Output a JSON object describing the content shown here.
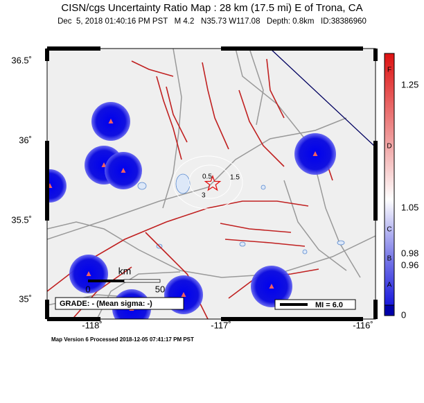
{
  "header": {
    "title": "CISN/cgs Uncertainty Ratio Map : 28 km (17.5 mi) E of Trona, CA",
    "subtitle": "Dec  5, 2018 01:40:16 PM PST   M 4.2   N35.73 W117.08   Depth: 0.8km   ID:38386960"
  },
  "axes": {
    "lat_labels": [
      "36.5˚",
      "36˚",
      "35.5˚",
      "35˚"
    ],
    "lon_labels": [
      "-118˚",
      "-117˚",
      "-116˚"
    ]
  },
  "colorbar": {
    "letters": [
      "F",
      "D",
      "C",
      "B",
      "A"
    ],
    "values": [
      "1.25",
      "1.05",
      "0.98",
      "0.96",
      "0"
    ]
  },
  "scale": {
    "unit": "km",
    "start": "0",
    "end": "50"
  },
  "contours": [
    "0.5",
    "1.5",
    "3"
  ],
  "legend": {
    "grade": "GRADE: - (Mean sigma: -)",
    "mi": "MI = 6.0"
  },
  "footer": "Map Version 6 Processed 2018-12-05 07:41:17 PM PST"
}
